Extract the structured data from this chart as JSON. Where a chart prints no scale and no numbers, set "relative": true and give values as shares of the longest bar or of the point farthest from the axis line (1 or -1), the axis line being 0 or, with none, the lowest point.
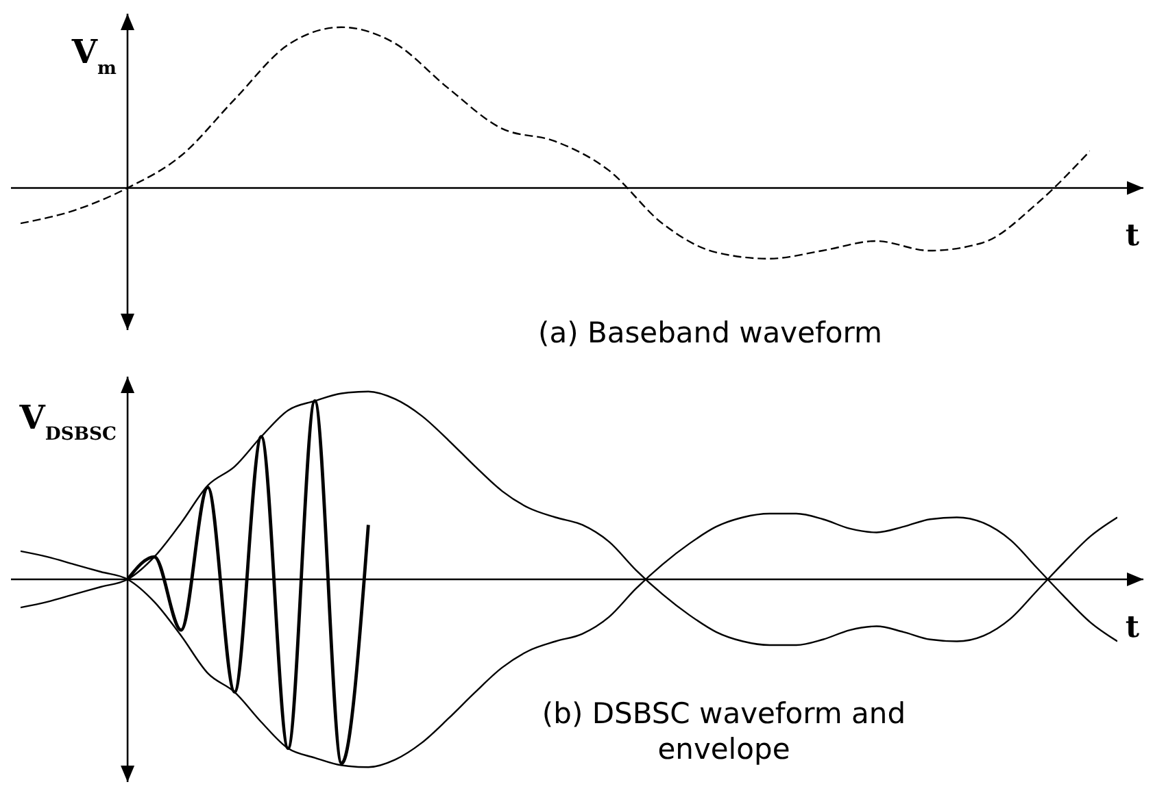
{
  "chart_data": [
    {
      "type": "line",
      "title": "(a) Baseband waveform",
      "xlabel": "t",
      "ylabel": "V$_{m}$",
      "relative": true,
      "tick_labels": false,
      "line_style": "dashed",
      "categories": [
        null,
        null,
        null,
        null,
        null,
        null,
        null,
        null,
        null,
        null,
        null,
        null,
        null,
        null,
        null,
        null,
        null,
        null,
        null,
        null,
        null
      ],
      "series": [
        {
          "color": "#000000",
          "values": [
            -0.22,
            -0.14,
            0,
            0.2,
            0.55,
            0.89,
            1,
            0.9,
            0.62,
            0.37,
            0.29,
            0.11,
            -0.22,
            -0.4,
            -0.44,
            -0.39,
            -0.33,
            -0.39,
            -0.34,
            -0.1,
            0.23
          ]
        }
      ]
    },
    {
      "type": "line",
      "title": "(b) DSBSC waveform and envelope",
      "xlabel": "t",
      "ylabel": "V$_{DSBSC}$",
      "relative": true,
      "tick_labels": false,
      "line_style": "solid",
      "categories": [
        null,
        null,
        null,
        null,
        null,
        null,
        null,
        null,
        null,
        null,
        null,
        null,
        null,
        null,
        null,
        null,
        null,
        null,
        null,
        null,
        null,
        null,
        null,
        null,
        null,
        null,
        null,
        null,
        null,
        null,
        null,
        null,
        null,
        null,
        null,
        null,
        null,
        null,
        null,
        null,
        null,
        null
      ],
      "series": [
        {
          "color": "#000000",
          "values": [
            -0.15,
            -0.12,
            -0.08,
            -0.04,
            0,
            0.12,
            0.3,
            0.5,
            0.6,
            0.76,
            0.9,
            0.95,
            0.99,
            1,
            0.96,
            0.87,
            0.74,
            0.6,
            0.47,
            0.38,
            0.33,
            0.29,
            0.2,
            0.05,
            -0.08,
            -0.19,
            -0.28,
            -0.33,
            -0.35,
            -0.35,
            -0.32,
            -0.27,
            -0.25,
            -0.28,
            -0.32,
            -0.33,
            -0.3,
            -0.21,
            -0.06,
            0.09,
            0.23,
            0.33
          ]
        },
        {
          "color": "#000000",
          "values": [
            0.15,
            0.12,
            0.08,
            0.04,
            0,
            -0.12,
            -0.3,
            -0.5,
            -0.6,
            -0.76,
            -0.9,
            -0.95,
            -0.99,
            -1,
            -0.96,
            -0.87,
            -0.74,
            -0.6,
            -0.47,
            -0.38,
            -0.33,
            -0.29,
            -0.2,
            -0.05,
            0.08,
            0.19,
            0.28,
            0.33,
            0.35,
            0.35,
            0.32,
            0.27,
            0.25,
            0.28,
            0.32,
            0.33,
            0.3,
            0.21,
            0.06,
            -0.09,
            -0.23,
            -0.33
          ]
        },
        {
          "color": "#000000",
          "values": [
            null,
            null,
            null,
            null,
            0,
            0.12,
            -0.27,
            0.49,
            -0.6,
            0.76,
            -0.9,
            0.95,
            -0.98,
            0.29,
            null,
            null,
            null,
            null,
            null,
            null,
            null,
            null,
            null,
            null,
            null,
            null,
            null,
            null,
            null,
            null,
            null,
            null,
            null,
            null,
            null,
            null,
            null,
            null,
            null,
            null,
            null,
            null
          ]
        }
      ]
    }
  ]
}
